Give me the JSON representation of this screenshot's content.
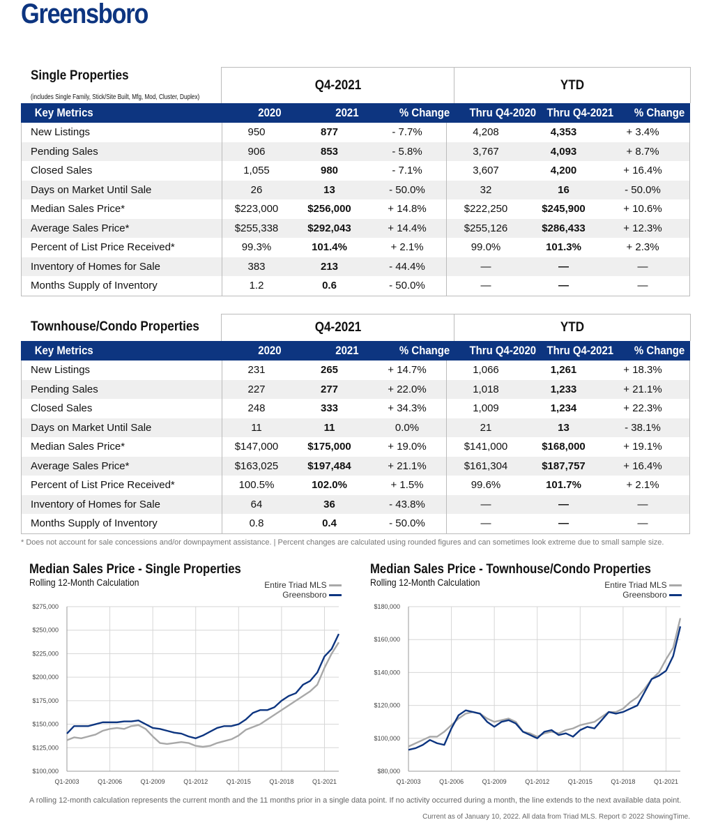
{
  "page_title": "Greensboro",
  "columns": {
    "q_group": "Q4-2021",
    "ytd_group": "YTD",
    "key": "Key Metrics",
    "y2020": "2020",
    "y2021": "2021",
    "pct": "% Change",
    "thru20": "Thru Q4-2020",
    "thru21": "Thru Q4-2021",
    "pct2": "% Change"
  },
  "single": {
    "title": "Single Properties",
    "subtitle": "(includes Single Family, Stick/Site Built, Mfg, Mod, Cluster, Duplex)",
    "rows": [
      [
        "New Listings",
        "950",
        "877",
        "- 7.7%",
        "4,208",
        "4,353",
        "+ 3.4%"
      ],
      [
        "Pending Sales",
        "906",
        "853",
        "- 5.8%",
        "3,767",
        "4,093",
        "+ 8.7%"
      ],
      [
        "Closed Sales",
        "1,055",
        "980",
        "- 7.1%",
        "3,607",
        "4,200",
        "+ 16.4%"
      ],
      [
        "Days on Market Until Sale",
        "26",
        "13",
        "- 50.0%",
        "32",
        "16",
        "- 50.0%"
      ],
      [
        "Median Sales Price*",
        "$223,000",
        "$256,000",
        "+ 14.8%",
        "$222,250",
        "$245,900",
        "+ 10.6%"
      ],
      [
        "Average Sales Price*",
        "$255,338",
        "$292,043",
        "+ 14.4%",
        "$255,126",
        "$286,433",
        "+ 12.3%"
      ],
      [
        "Percent of List Price Received*",
        "99.3%",
        "101.4%",
        "+ 2.1%",
        "99.0%",
        "101.3%",
        "+ 2.3%"
      ],
      [
        "Inventory of Homes for Sale",
        "383",
        "213",
        "- 44.4%",
        "—",
        "—",
        "—"
      ],
      [
        "Months Supply of Inventory",
        "1.2",
        "0.6",
        "- 50.0%",
        "—",
        "—",
        "—"
      ]
    ]
  },
  "townhouse": {
    "title": "Townhouse/Condo Properties",
    "rows": [
      [
        "New Listings",
        "231",
        "265",
        "+ 14.7%",
        "1,066",
        "1,261",
        "+ 18.3%"
      ],
      [
        "Pending Sales",
        "227",
        "277",
        "+ 22.0%",
        "1,018",
        "1,233",
        "+ 21.1%"
      ],
      [
        "Closed Sales",
        "248",
        "333",
        "+ 34.3%",
        "1,009",
        "1,234",
        "+ 22.3%"
      ],
      [
        "Days on Market Until Sale",
        "11",
        "11",
        "0.0%",
        "21",
        "13",
        "- 38.1%"
      ],
      [
        "Median Sales Price*",
        "$147,000",
        "$175,000",
        "+ 19.0%",
        "$141,000",
        "$168,000",
        "+ 19.1%"
      ],
      [
        "Average Sales Price*",
        "$163,025",
        "$197,484",
        "+ 21.1%",
        "$161,304",
        "$187,757",
        "+ 16.4%"
      ],
      [
        "Percent of List Price Received*",
        "100.5%",
        "102.0%",
        "+ 1.5%",
        "99.6%",
        "101.7%",
        "+ 2.1%"
      ],
      [
        "Inventory of Homes for Sale",
        "64",
        "36",
        "- 43.8%",
        "—",
        "—",
        "—"
      ],
      [
        "Months Supply of Inventory",
        "0.8",
        "0.4",
        "- 50.0%",
        "—",
        "—",
        "—"
      ]
    ]
  },
  "note": "* Does not account for sale concessions and/or downpayment assistance. | Percent changes are calculated using rounded figures and can sometimes look extreme due to small sample size.",
  "footer_note": "A rolling 12-month calculation represents the current month and the 11 months prior in a single data point. If no activity occurred during a month, the line extends to the next available data point.",
  "footer_source": "Current as of January 10, 2022. All data from Triad MLS. Report © 2022 ShowingTime.",
  "colors": {
    "brand": "#0d3580",
    "triad": "#a8a8a8",
    "grid": "#d0d0d0"
  },
  "chart_data": [
    {
      "type": "line",
      "title": "Median Sales Price - Single Properties",
      "subtitle": "Rolling 12-Month Calculation",
      "x_ticks": [
        "Q1-2003",
        "Q1-2006",
        "Q1-2009",
        "Q1-2012",
        "Q1-2015",
        "Q1-2018",
        "Q1-2021"
      ],
      "y_ticks": [
        "$100,000",
        "$125,000",
        "$150,000",
        "$175,000",
        "$200,000",
        "$225,000",
        "$250,000",
        "$275,000"
      ],
      "ylim": [
        100000,
        275000
      ],
      "xlim": [
        2003,
        2022
      ],
      "series": [
        {
          "name": "Entire Triad MLS",
          "color": "#a8a8a8",
          "x": [
            2003,
            2003.5,
            2004,
            2004.5,
            2005,
            2005.5,
            2006,
            2006.5,
            2007,
            2007.5,
            2008,
            2008.5,
            2009,
            2009.5,
            2010,
            2010.5,
            2011,
            2011.5,
            2012,
            2012.5,
            2013,
            2013.5,
            2014,
            2014.5,
            2015,
            2015.5,
            2016,
            2016.5,
            2017,
            2017.5,
            2018,
            2018.5,
            2019,
            2019.5,
            2020,
            2020.5,
            2021,
            2021.5,
            2022
          ],
          "y": [
            133000,
            136000,
            135000,
            137000,
            139000,
            143000,
            145000,
            146000,
            145000,
            148000,
            149000,
            145000,
            137000,
            130000,
            129000,
            130000,
            131000,
            130000,
            127000,
            126000,
            127000,
            130000,
            132000,
            134000,
            138000,
            144000,
            147000,
            150000,
            155000,
            160000,
            165000,
            170000,
            175000,
            180000,
            185000,
            192000,
            210000,
            225000,
            237000
          ]
        },
        {
          "name": "Greensboro",
          "color": "#0d3580",
          "x": [
            2003,
            2003.5,
            2004,
            2004.5,
            2005,
            2005.5,
            2006,
            2006.5,
            2007,
            2007.5,
            2008,
            2008.5,
            2009,
            2009.5,
            2010,
            2010.5,
            2011,
            2011.5,
            2012,
            2012.5,
            2013,
            2013.5,
            2014,
            2014.5,
            2015,
            2015.5,
            2016,
            2016.5,
            2017,
            2017.5,
            2018,
            2018.5,
            2019,
            2019.5,
            2020,
            2020.5,
            2021,
            2021.5,
            2022
          ],
          "y": [
            140000,
            148000,
            148000,
            148000,
            150000,
            152000,
            152000,
            152000,
            153000,
            153000,
            154000,
            150000,
            146000,
            145000,
            143000,
            141000,
            140000,
            137000,
            135000,
            138000,
            142000,
            146000,
            148000,
            148000,
            150000,
            155000,
            162000,
            165000,
            165000,
            168000,
            175000,
            180000,
            183000,
            192000,
            196000,
            205000,
            222000,
            230000,
            246000
          ]
        }
      ]
    },
    {
      "type": "line",
      "title": "Median Sales Price - Townhouse/Condo Properties",
      "subtitle": "Rolling 12-Month Calculation",
      "x_ticks": [
        "Q1-2003",
        "Q1-2006",
        "Q1-2009",
        "Q1-2012",
        "Q1-2015",
        "Q1-2018",
        "Q1-2021"
      ],
      "y_ticks": [
        "$80,000",
        "$100,000",
        "$120,000",
        "$140,000",
        "$160,000",
        "$180,000"
      ],
      "ylim": [
        80000,
        180000
      ],
      "xlim": [
        2003,
        2022
      ],
      "series": [
        {
          "name": "Entire Triad MLS",
          "color": "#a8a8a8",
          "x": [
            2003,
            2003.5,
            2004,
            2004.5,
            2005,
            2005.5,
            2006,
            2006.5,
            2007,
            2007.5,
            2008,
            2008.5,
            2009,
            2009.5,
            2010,
            2010.5,
            2011,
            2011.5,
            2012,
            2012.5,
            2013,
            2013.5,
            2014,
            2014.5,
            2015,
            2015.5,
            2016,
            2016.5,
            2017,
            2017.5,
            2018,
            2018.5,
            2019,
            2019.5,
            2020,
            2020.5,
            2021,
            2021.5,
            2022
          ],
          "y": [
            95000,
            97000,
            99000,
            101000,
            101000,
            104000,
            108000,
            112000,
            115000,
            116000,
            115000,
            112000,
            110000,
            111000,
            112000,
            110000,
            104000,
            103000,
            101000,
            103000,
            104000,
            103000,
            105000,
            106000,
            108000,
            109000,
            110000,
            113000,
            116000,
            116000,
            118000,
            122000,
            125000,
            130000,
            136000,
            140000,
            148000,
            155000,
            173000
          ]
        },
        {
          "name": "Greensboro",
          "color": "#0d3580",
          "x": [
            2003,
            2003.5,
            2004,
            2004.5,
            2005,
            2005.5,
            2006,
            2006.5,
            2007,
            2007.5,
            2008,
            2008.5,
            2009,
            2009.5,
            2010,
            2010.5,
            2011,
            2011.5,
            2012,
            2012.5,
            2013,
            2013.5,
            2014,
            2014.5,
            2015,
            2015.5,
            2016,
            2016.5,
            2017,
            2017.5,
            2018,
            2018.5,
            2019,
            2019.5,
            2020,
            2020.5,
            2021,
            2021.5,
            2022
          ],
          "y": [
            93000,
            94000,
            96000,
            99000,
            97000,
            96000,
            106000,
            114000,
            117000,
            116000,
            115000,
            110000,
            107000,
            110000,
            111000,
            109000,
            104000,
            102000,
            100000,
            104000,
            105000,
            102000,
            103000,
            101000,
            105000,
            107000,
            106000,
            111000,
            116000,
            115000,
            116000,
            118000,
            120000,
            128000,
            136000,
            138000,
            141000,
            150000,
            168000
          ]
        }
      ]
    }
  ]
}
